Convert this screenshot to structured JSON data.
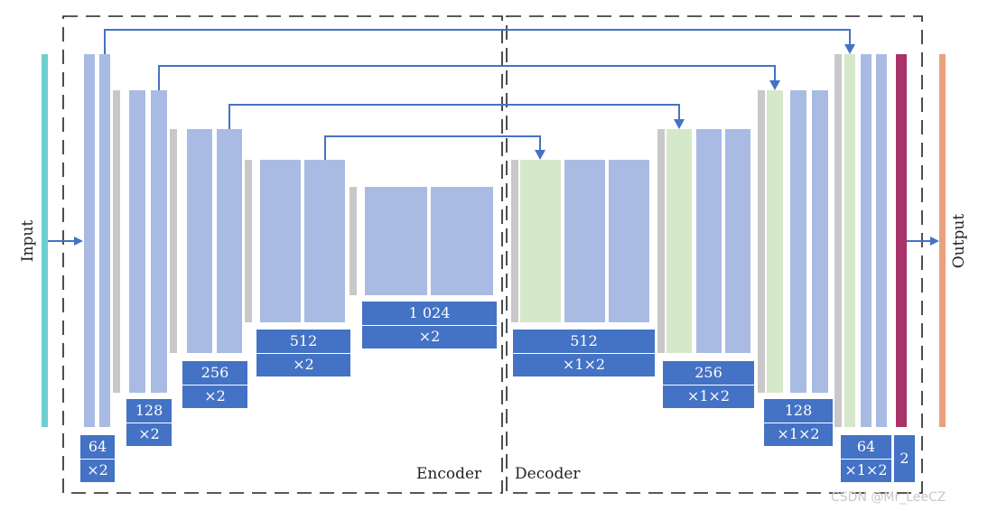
{
  "labels": {
    "input": "Input",
    "output": "Output",
    "encoder": "Encoder",
    "decoder": "Decoder"
  },
  "encoder_stages": [
    {
      "channels": "64",
      "conv": "×2"
    },
    {
      "channels": "128",
      "conv": "×2"
    },
    {
      "channels": "256",
      "conv": "×2"
    },
    {
      "channels": "512",
      "conv": "×2"
    }
  ],
  "bottleneck": {
    "channels": "1 024",
    "conv": "×2"
  },
  "decoder_stages": [
    {
      "channels": "512",
      "conv": "×1×2"
    },
    {
      "channels": "256",
      "conv": "×1×2"
    },
    {
      "channels": "128",
      "conv": "×1×2"
    },
    {
      "channels": "64",
      "conv": "×1×2"
    }
  ],
  "final_output": {
    "channels": "2"
  },
  "watermark": "CSDN @Mr_LeeCZ",
  "colors": {
    "feature_map": "#a9bbe3",
    "upsampled_map": "#d5e8c9",
    "pool_bar": "#c8c8c8",
    "label_box": "#4472c4",
    "arrow": "#4472c4",
    "input_bar": "#6fcfcf",
    "output_bar": "#e9a07e",
    "final_conv_bar": "#a8346a",
    "dashed_border": "#222222"
  }
}
